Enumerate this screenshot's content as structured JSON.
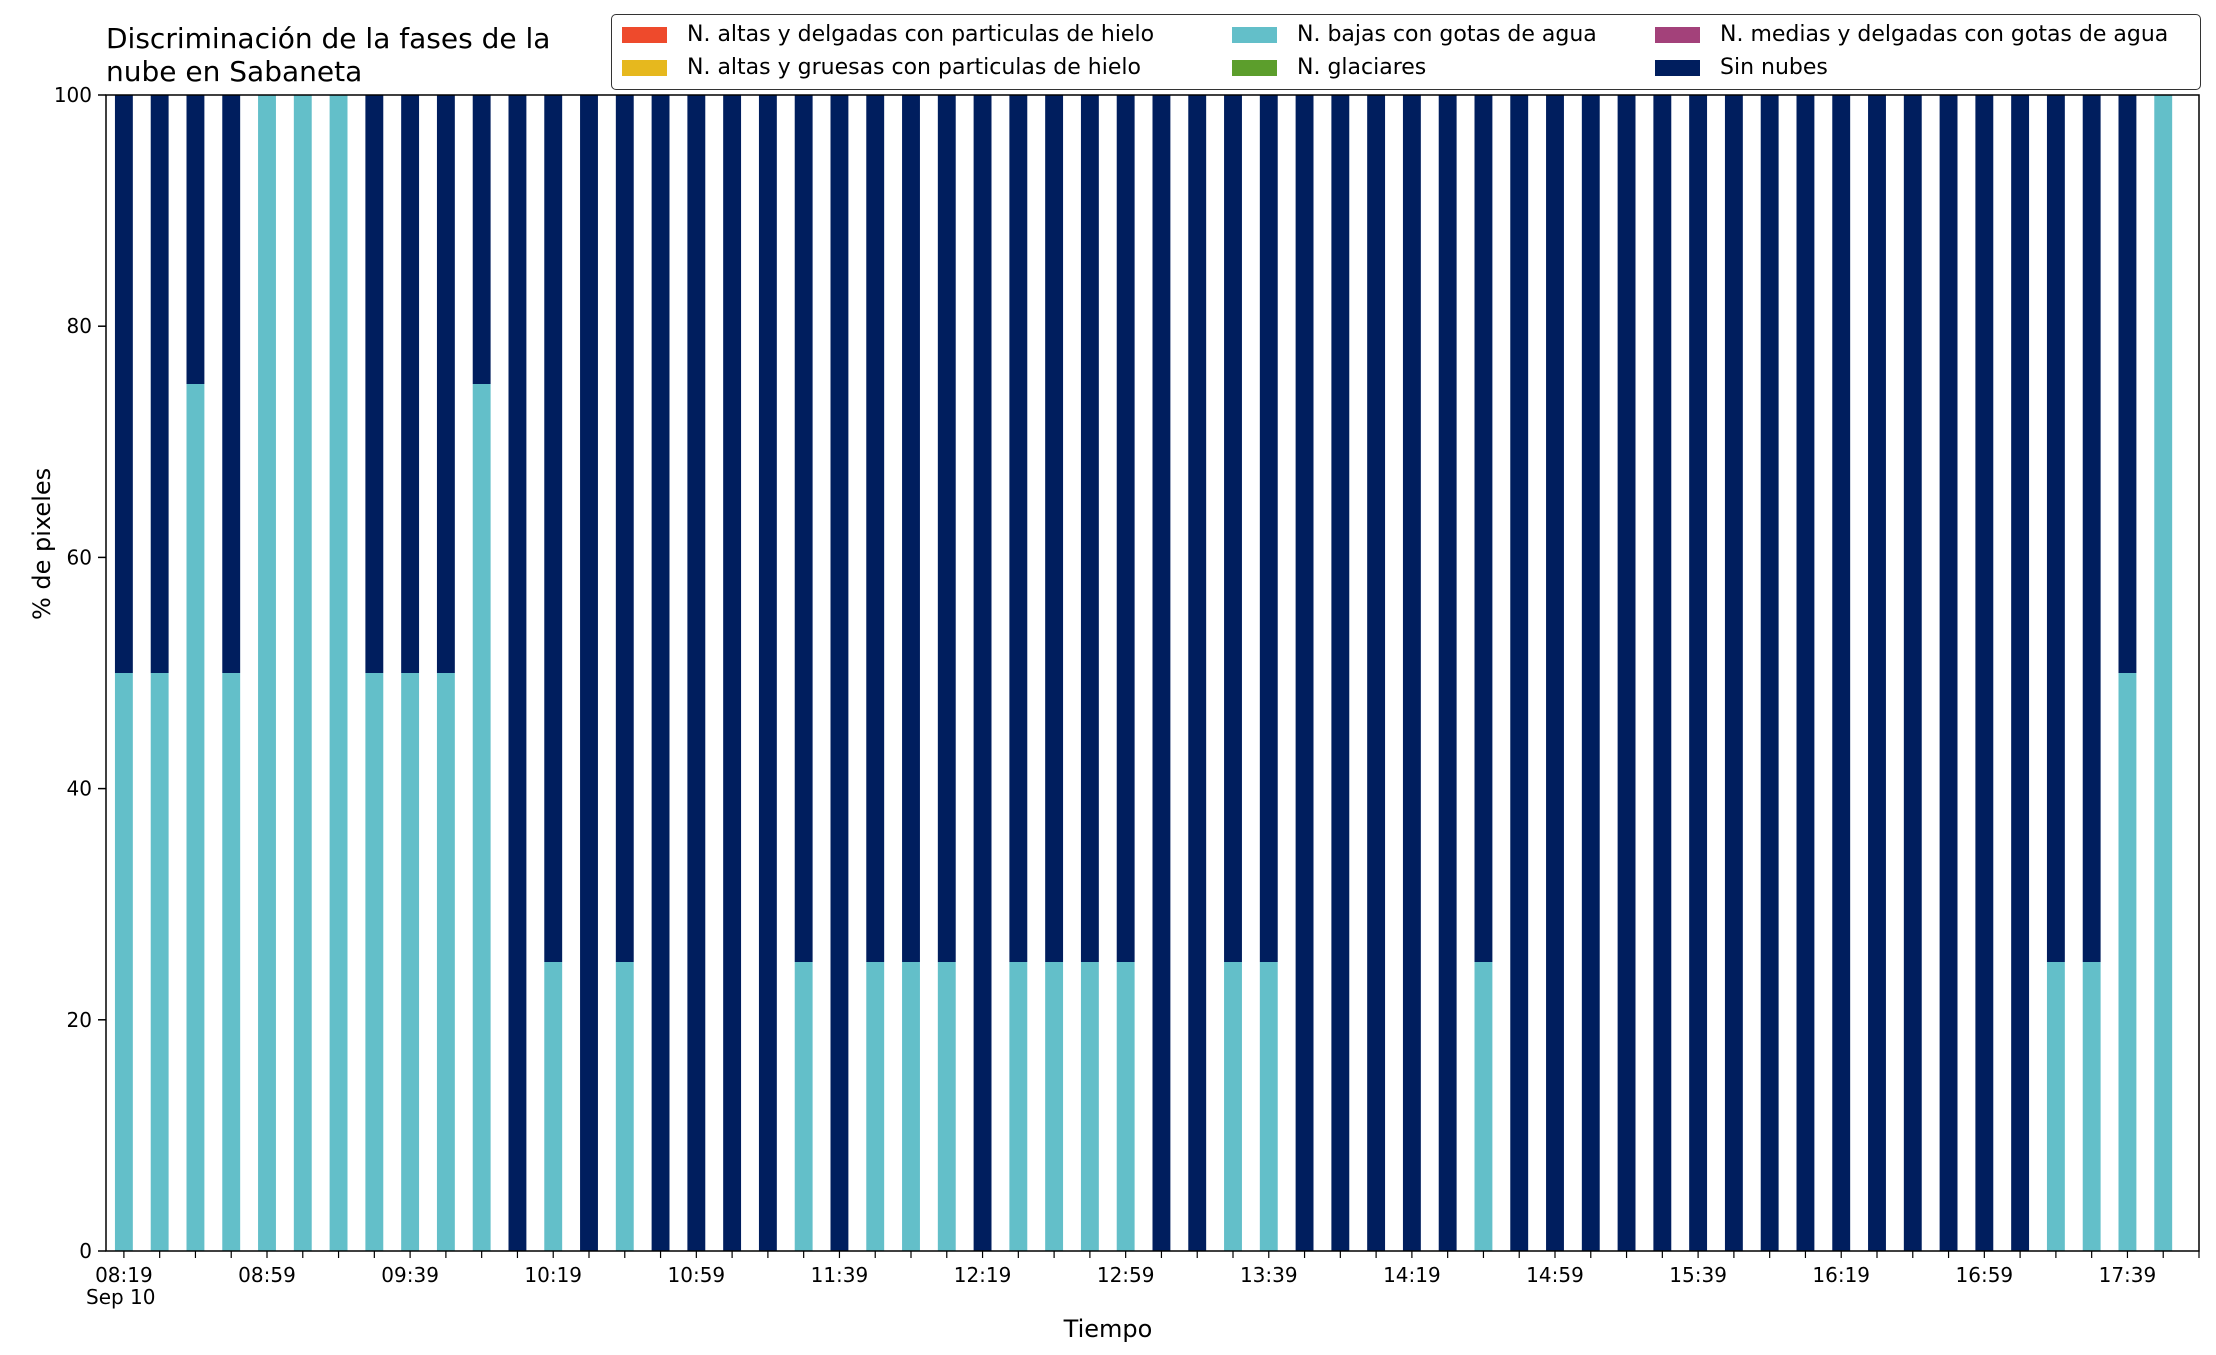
{
  "chart_data": {
    "type": "bar",
    "stacked": true,
    "title": "Discriminación de la fases de la\nnube en Sabaneta",
    "xlabel": "Tiempo",
    "ylabel": "% de pixeles",
    "ylim": [
      0,
      100
    ],
    "yticks": [
      0,
      20,
      40,
      60,
      80,
      100
    ],
    "grid": false,
    "legend_position": "top-right",
    "date_label": "Sep 10",
    "categories": [
      "08:19",
      "08:29",
      "08:39",
      "08:49",
      "08:59",
      "09:09",
      "09:19",
      "09:29",
      "09:39",
      "09:49",
      "09:59",
      "10:09",
      "10:19",
      "10:29",
      "10:39",
      "10:49",
      "10:59",
      "11:09",
      "11:19",
      "11:29",
      "11:39",
      "11:49",
      "11:59",
      "12:09",
      "12:19",
      "12:29",
      "12:39",
      "12:49",
      "12:59",
      "13:09",
      "13:19",
      "13:29",
      "13:39",
      "13:49",
      "13:59",
      "14:09",
      "14:19",
      "14:29",
      "14:39",
      "14:49",
      "14:59",
      "15:09",
      "15:19",
      "15:29",
      "15:39",
      "15:49",
      "15:59",
      "16:09",
      "16:19",
      "16:29",
      "16:39",
      "16:49",
      "16:59",
      "17:09",
      "17:19",
      "17:29",
      "17:39",
      "17:49"
    ],
    "tick_labels": [
      "08:19",
      "08:59",
      "09:39",
      "10:19",
      "10:59",
      "11:39",
      "12:19",
      "12:59",
      "13:39",
      "14:19",
      "14:59",
      "15:39",
      "16:19",
      "16:59",
      "17:39"
    ],
    "series": [
      {
        "name": "N. altas y delgadas con particulas de hielo",
        "color": "#ee4a2c",
        "values": [
          0,
          0,
          0,
          0,
          0,
          0,
          0,
          0,
          0,
          0,
          0,
          0,
          0,
          0,
          0,
          0,
          0,
          0,
          0,
          0,
          0,
          0,
          0,
          0,
          0,
          0,
          0,
          0,
          0,
          0,
          0,
          0,
          0,
          0,
          0,
          0,
          0,
          0,
          0,
          0,
          0,
          0,
          0,
          0,
          0,
          0,
          0,
          0,
          0,
          0,
          0,
          0,
          0,
          0,
          0,
          0,
          0,
          0
        ]
      },
      {
        "name": "N. altas y gruesas con particulas de hielo",
        "color": "#e6b81e",
        "values": [
          0,
          0,
          0,
          0,
          0,
          0,
          0,
          0,
          0,
          0,
          0,
          0,
          0,
          0,
          0,
          0,
          0,
          0,
          0,
          0,
          0,
          0,
          0,
          0,
          0,
          0,
          0,
          0,
          0,
          0,
          0,
          0,
          0,
          0,
          0,
          0,
          0,
          0,
          0,
          0,
          0,
          0,
          0,
          0,
          0,
          0,
          0,
          0,
          0,
          0,
          0,
          0,
          0,
          0,
          0,
          0,
          0,
          0
        ]
      },
      {
        "name": "N. bajas con gotas de agua",
        "color": "#63bfc9",
        "values": [
          50,
          50,
          75,
          50,
          100,
          100,
          100,
          50,
          50,
          50,
          75,
          0,
          25,
          0,
          25,
          0,
          0,
          0,
          0,
          25,
          0,
          25,
          25,
          25,
          0,
          25,
          25,
          25,
          25,
          0,
          0,
          25,
          25,
          0,
          0,
          0,
          0,
          0,
          25,
          0,
          0,
          0,
          0,
          0,
          0,
          0,
          0,
          0,
          0,
          0,
          0,
          0,
          0,
          0,
          25,
          25,
          50,
          100
        ]
      },
      {
        "name": "N. glaciares",
        "color": "#5c9e2c",
        "values": [
          0,
          0,
          0,
          0,
          0,
          0,
          0,
          0,
          0,
          0,
          0,
          0,
          0,
          0,
          0,
          0,
          0,
          0,
          0,
          0,
          0,
          0,
          0,
          0,
          0,
          0,
          0,
          0,
          0,
          0,
          0,
          0,
          0,
          0,
          0,
          0,
          0,
          0,
          0,
          0,
          0,
          0,
          0,
          0,
          0,
          0,
          0,
          0,
          0,
          0,
          0,
          0,
          0,
          0,
          0,
          0,
          0,
          0
        ]
      },
      {
        "name": "N. medias y delgadas con gotas de agua",
        "color": "#a3417a",
        "values": [
          0,
          0,
          0,
          0,
          0,
          0,
          0,
          0,
          0,
          0,
          0,
          0,
          0,
          0,
          0,
          0,
          0,
          0,
          0,
          0,
          0,
          0,
          0,
          0,
          0,
          0,
          0,
          0,
          0,
          0,
          0,
          0,
          0,
          0,
          0,
          0,
          0,
          0,
          0,
          0,
          0,
          0,
          0,
          0,
          0,
          0,
          0,
          0,
          0,
          0,
          0,
          0,
          0,
          0,
          0,
          0,
          0,
          0
        ]
      },
      {
        "name": "Sin nubes",
        "color": "#001e5e",
        "values": [
          50,
          50,
          25,
          50,
          0,
          0,
          0,
          50,
          50,
          50,
          25,
          100,
          75,
          100,
          75,
          100,
          100,
          100,
          100,
          75,
          100,
          75,
          75,
          75,
          100,
          75,
          75,
          75,
          75,
          100,
          100,
          75,
          75,
          100,
          100,
          100,
          100,
          100,
          75,
          100,
          100,
          100,
          100,
          100,
          100,
          100,
          100,
          100,
          100,
          100,
          100,
          100,
          100,
          100,
          75,
          75,
          50,
          0
        ]
      }
    ]
  }
}
